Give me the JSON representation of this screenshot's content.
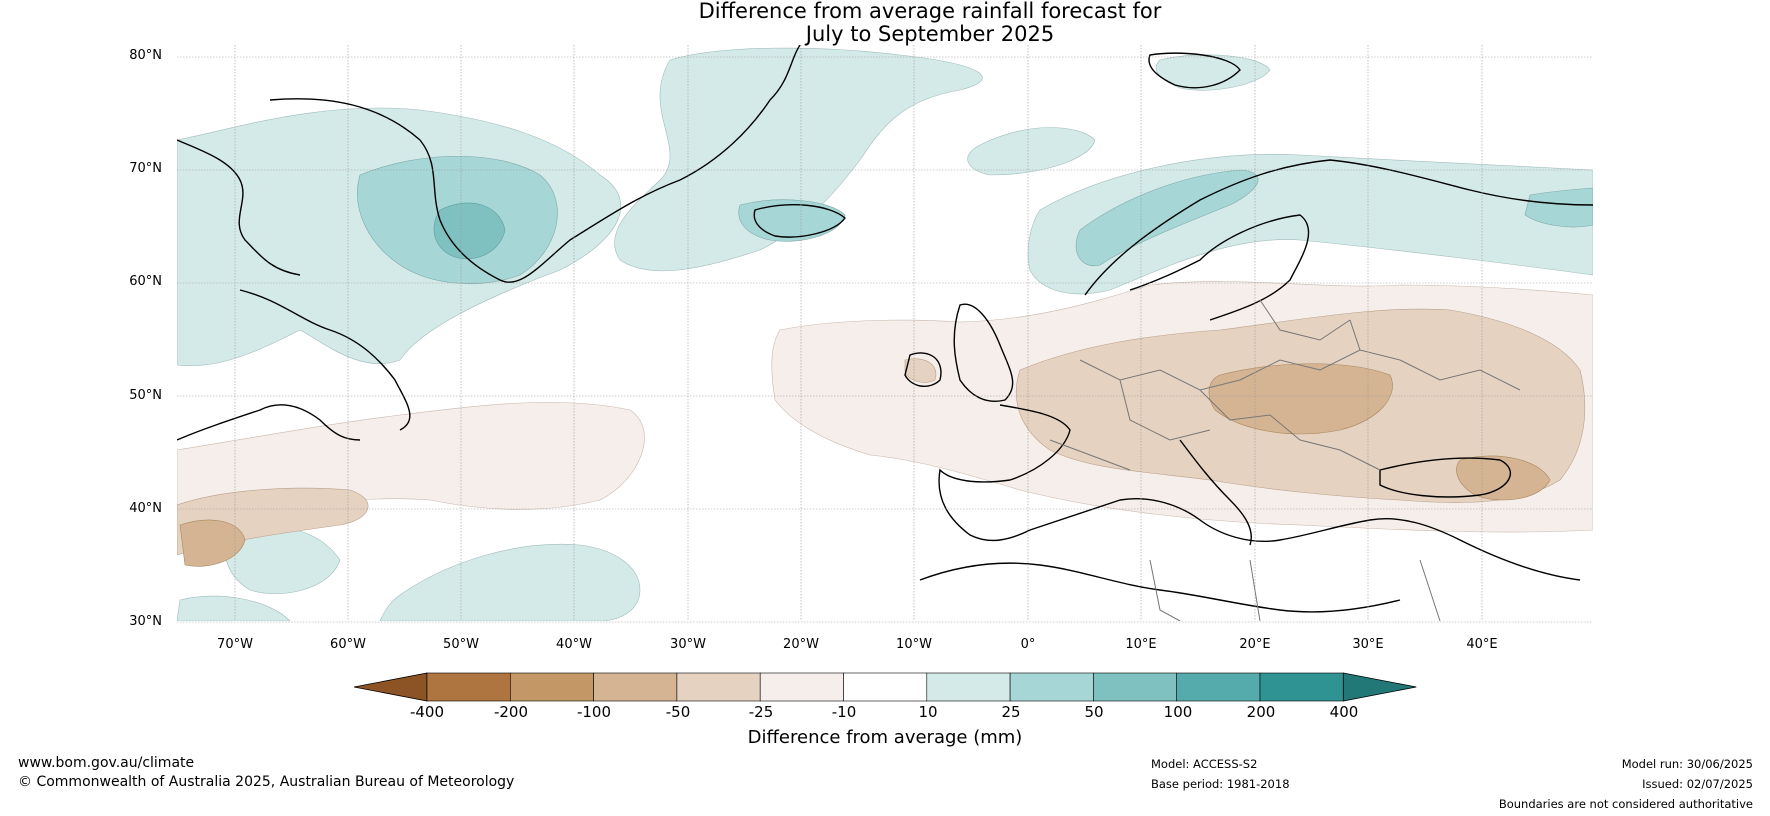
{
  "title": {
    "line1": "Difference from average rainfall forecast for",
    "line2": "July to September 2025"
  },
  "latitude_labels": [
    "80°N",
    "70°N",
    "60°N",
    "50°N",
    "40°N",
    "30°N"
  ],
  "longitude_labels": [
    "70°W",
    "60°W",
    "50°W",
    "40°W",
    "30°W",
    "20°W",
    "10°W",
    "0°",
    "10°E",
    "20°E",
    "30°E",
    "40°E"
  ],
  "colorbar": {
    "title": "Difference from average (mm)",
    "tick_labels": [
      "-400",
      "-200",
      "-100",
      "-50",
      "-25",
      "-10",
      "10",
      "25",
      "50",
      "100",
      "200",
      "400"
    ],
    "colors": [
      "#8c5325",
      "#ae7540",
      "#c49767",
      "#d5b493",
      "#e6d2c0",
      "#f5eeea",
      "#ffffff",
      "#d4eae9",
      "#a6d6d6",
      "#7ec1c0",
      "#55abab",
      "#2f9393",
      "#227777"
    ]
  },
  "footer": {
    "website": "www.bom.gov.au/climate",
    "copyright": "© Commonwealth of Australia 2025, Australian Bureau of Meteorology",
    "model": "Model: ACCESS-S2",
    "base_period": "Base period: 1981-2018",
    "model_run": "Model run: 30/06/2025",
    "issued": "Issued: 02/07/2025",
    "disclaimer": "Boundaries are not considered authoritative"
  },
  "map_colors": {
    "wet_light": "#d4eae9",
    "wet_mid": "#a6d6d6",
    "wet_strong": "#7ec1c0",
    "dry_light": "#f5eeea",
    "dry_mid": "#e6d2c0",
    "dry_strong": "#d5b493",
    "dry_deep": "#c49767"
  }
}
